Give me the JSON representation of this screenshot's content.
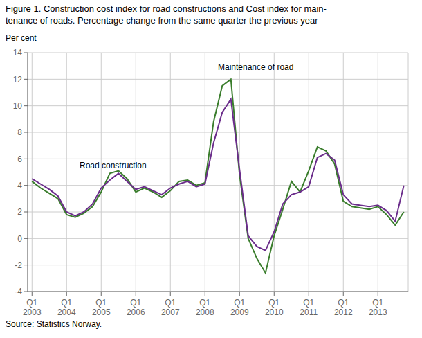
{
  "chart_data": {
    "type": "line",
    "title": "Figure 1. Construction cost index for road constructions and Cost index for main-\ntenance of roads. Percentage change from the same quarter the previous year",
    "y_label": "Per cent",
    "source": "Source: Statistics Norway.",
    "categories": [
      "Q1\n2003",
      null,
      null,
      null,
      "Q1\n2004",
      null,
      null,
      null,
      "Q1\n2005",
      null,
      null,
      null,
      "Q1\n2006",
      null,
      null,
      null,
      "Q1\n2007",
      null,
      null,
      null,
      "Q1\n2008",
      null,
      null,
      null,
      "Q1\n2009",
      null,
      null,
      null,
      "Q1\n2010",
      null,
      null,
      null,
      "Q1\n2011",
      null,
      null,
      null,
      "Q1\n2012",
      null,
      null,
      null,
      "Q1\n2013",
      null,
      null,
      null
    ],
    "series": [
      {
        "color": "#3A7D2C",
        "values": [
          4.3,
          3.8,
          3.4,
          3.0,
          1.8,
          1.6,
          1.9,
          2.4,
          3.5,
          4.9,
          5.1,
          4.5,
          3.5,
          3.8,
          3.5,
          3.1,
          3.6,
          4.3,
          4.4,
          4.0,
          4.2,
          8.8,
          11.5,
          12.0,
          4.8,
          0.0,
          -1.5,
          -2.6,
          0.2,
          2.2,
          4.3,
          3.5,
          5.1,
          6.9,
          6.6,
          5.6,
          2.8,
          2.4,
          2.3,
          2.2,
          2.4,
          1.8,
          1.0,
          2.0
        ]
      },
      {
        "color": "#6B2D8B",
        "values": [
          4.5,
          4.1,
          3.7,
          3.2,
          2.0,
          1.7,
          2.0,
          2.6,
          3.8,
          4.4,
          4.9,
          4.3,
          3.7,
          3.9,
          3.6,
          3.3,
          3.8,
          4.1,
          4.3,
          3.9,
          4.1,
          7.2,
          9.5,
          10.5,
          5.2,
          0.2,
          -0.6,
          -0.9,
          0.5,
          2.6,
          3.3,
          3.5,
          3.9,
          6.1,
          6.4,
          5.9,
          3.3,
          2.6,
          2.5,
          2.4,
          2.5,
          2.1,
          1.3,
          4.0
        ]
      }
    ],
    "annotations": [
      {
        "text": "Road construction",
        "x": 5.5,
        "y": 5.3
      },
      {
        "text": "Maintenance of road",
        "x": 21.5,
        "y": 12.7
      }
    ],
    "ylim": [
      -4,
      14
    ],
    "yticks": [
      -4,
      -2,
      0,
      2,
      4,
      6,
      8,
      10,
      12,
      14
    ],
    "grid": true
  }
}
